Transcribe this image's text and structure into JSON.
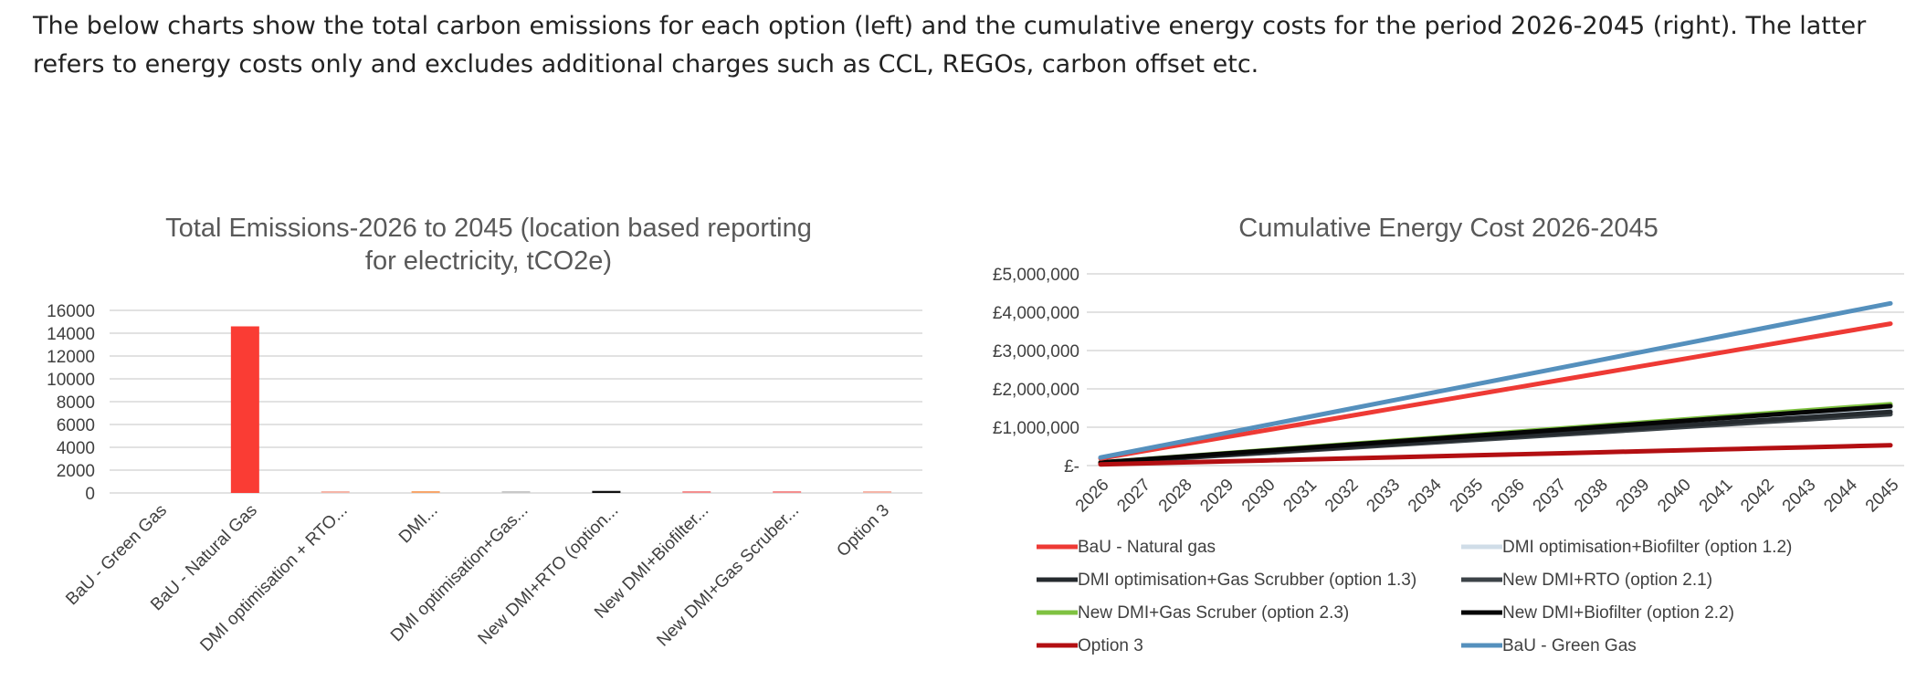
{
  "intro_text": "The below charts show the total carbon emissions for each option (left) and the cumulative energy costs for the period 2026-2045 (right). The latter refers to energy costs only and excludes additional charges such as CCL, REGOs, carbon offset etc.",
  "chart_data": [
    {
      "type": "bar",
      "title": "Total Emissions-2026 to 2045 (location based reporting for electricity, tCO2e)",
      "title_lines": [
        "Total Emissions-2026 to 2045 (location based reporting",
        "for electricity, tCO2e)"
      ],
      "categories": [
        "BaU - Green Gas",
        "BaU - Natural Gas",
        "DMI optimisation + RTO...",
        "DMI...",
        "DMI optimisation+Gas...",
        "New DMI+RTO  (option...",
        "New DMI+Biofilter...",
        "New DMI+Gas Scruber...",
        "Option 3"
      ],
      "values": [
        0,
        14600,
        30,
        110,
        60,
        180,
        110,
        110,
        20
      ],
      "colors": [
        "#f5b5a8",
        "#fa3c34",
        "#f5b5a8",
        "#f7a66b",
        "#c9c9c9",
        "#111111",
        "#f48f8f",
        "#f48f8f",
        "#f5b5a8"
      ],
      "ylim": [
        0,
        16000
      ],
      "yticks": [
        0,
        2000,
        4000,
        6000,
        8000,
        10000,
        12000,
        14000,
        16000
      ],
      "grid": true
    },
    {
      "type": "line",
      "title": "Cumulative Energy Cost 2026-2045",
      "x": [
        "2026",
        "2027",
        "2028",
        "2029",
        "2030",
        "2031",
        "2032",
        "2033",
        "2034",
        "2035",
        "2036",
        "2037",
        "2038",
        "2039",
        "2040",
        "2041",
        "2042",
        "2043",
        "2044",
        "2045"
      ],
      "ylim": [
        0,
        5000000
      ],
      "yticks": [
        {
          "value": 0,
          "label": "£-"
        },
        {
          "value": 1000000,
          "label": "£1,000,000"
        },
        {
          "value": 2000000,
          "label": "£2,000,000"
        },
        {
          "value": 3000000,
          "label": "£3,000,000"
        },
        {
          "value": 4000000,
          "label": "£4,000,000"
        },
        {
          "value": 5000000,
          "label": "£5,000,000"
        }
      ],
      "grid": true,
      "legend_position": "bottom",
      "series": [
        {
          "name": "BaU - Natural gas",
          "color": "#ee3a35",
          "start": 185000,
          "end": 3700000
        },
        {
          "name": "DMI optimisation+Biofilter  (option 1.2)",
          "color": "#d0dde8",
          "start": 75000,
          "end": 1450000
        },
        {
          "name": "DMI optimisation+Gas Scrubber (option 1.3)",
          "color": "#252a2e",
          "start": 70000,
          "end": 1400000
        },
        {
          "name": "New DMI+RTO  (option 2.1)",
          "color": "#3c4348",
          "start": 65000,
          "end": 1340000
        },
        {
          "name": "New DMI+Gas Scruber (option 2.3)",
          "color": "#7fc241",
          "start": 82000,
          "end": 1600000
        },
        {
          "name": "New DMI+Biofilter (option 2.2)",
          "color": "#050505",
          "start": 80000,
          "end": 1550000
        },
        {
          "name": "Option 3",
          "color": "#b30f12",
          "start": 30000,
          "end": 530000
        },
        {
          "name": "BaU - Green Gas",
          "color": "#5590bd",
          "start": 210000,
          "end": 4230000
        }
      ]
    }
  ]
}
